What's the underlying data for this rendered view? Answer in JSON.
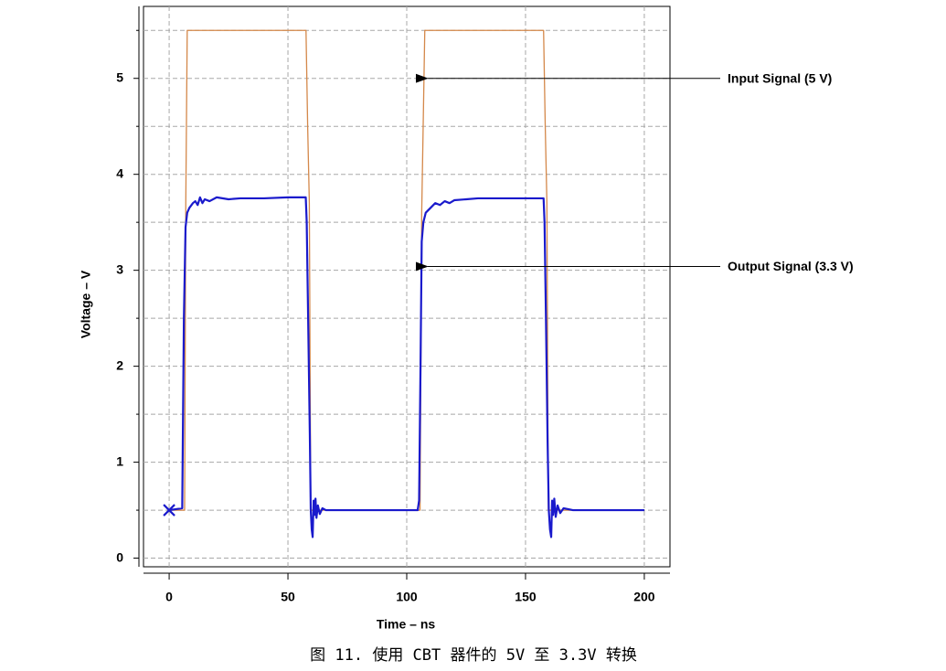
{
  "chart_data": {
    "type": "line",
    "caption": "图 11. 使用 CBT 器件的 5V 至 3.3V 转换",
    "xlabel": "Time – ns",
    "ylabel": "Voltage – V",
    "xlim": [
      -10.8,
      210.8
    ],
    "xticks": [
      0,
      50,
      100,
      150,
      200
    ],
    "ylim": [
      -0.09,
      5.75
    ],
    "yticks": [
      0,
      1,
      2,
      3,
      4,
      5
    ],
    "minor_ygrid": [
      0.5,
      1.5,
      2.5,
      3.5,
      4.5,
      5.5
    ],
    "grid": true,
    "start_marker": {
      "x": 0,
      "y": 0.5
    },
    "series": [
      {
        "name": "Input Signal (5 V)",
        "color": "#d4884a",
        "label_xy": [
          108,
          5
        ],
        "x": [
          0,
          6.5,
          7,
          7.6,
          57.6,
          58.3,
          59,
          59.6,
          105,
          105.6,
          106.3,
          107.6,
          157.6,
          158.3,
          159,
          159.6,
          200
        ],
        "values": [
          0.5,
          0.5,
          3.7,
          5.5,
          5.5,
          4.5,
          3.7,
          0.5,
          0.5,
          0.5,
          3.6,
          5.5,
          5.5,
          4.5,
          3.7,
          0.5,
          0.5
        ]
      },
      {
        "name": "Output Signal (3.3 V)",
        "color": "#1a1acc",
        "label_xy": [
          108,
          3.04
        ],
        "x": [
          0,
          5.5,
          6.2,
          6.9,
          7.6,
          8.5,
          10,
          11,
          12,
          13,
          14,
          15,
          17,
          20,
          25,
          30,
          40,
          50,
          57.5,
          57.9,
          58.5,
          59.2,
          59.6,
          60.0,
          60.4,
          60.8,
          61.2,
          61.6,
          62,
          62.6,
          63.4,
          64.5,
          66,
          70,
          80,
          90,
          100,
          104.6,
          105.2,
          105.8,
          106.3,
          107,
          108,
          110,
          112,
          114,
          116,
          118,
          120,
          125,
          130,
          140,
          150,
          157.6,
          158,
          158.6,
          159.3,
          159.8,
          160.3,
          160.8,
          161.2,
          161.6,
          162.1,
          162.7,
          163.5,
          164.6,
          166,
          170,
          180,
          190,
          200
        ],
        "values": [
          0.5,
          0.52,
          2.5,
          3.45,
          3.6,
          3.65,
          3.7,
          3.72,
          3.68,
          3.76,
          3.7,
          3.74,
          3.72,
          3.76,
          3.74,
          3.75,
          3.75,
          3.76,
          3.76,
          3.5,
          2.5,
          1.3,
          0.5,
          0.3,
          0.22,
          0.6,
          0.45,
          0.62,
          0.42,
          0.55,
          0.46,
          0.52,
          0.5,
          0.5,
          0.5,
          0.5,
          0.5,
          0.5,
          0.6,
          2.0,
          3.3,
          3.5,
          3.6,
          3.65,
          3.7,
          3.68,
          3.72,
          3.7,
          3.73,
          3.74,
          3.75,
          3.75,
          3.75,
          3.75,
          3.5,
          2.5,
          1.2,
          0.5,
          0.3,
          0.22,
          0.6,
          0.45,
          0.62,
          0.43,
          0.55,
          0.47,
          0.52,
          0.5,
          0.5,
          0.5,
          0.5
        ]
      }
    ]
  }
}
